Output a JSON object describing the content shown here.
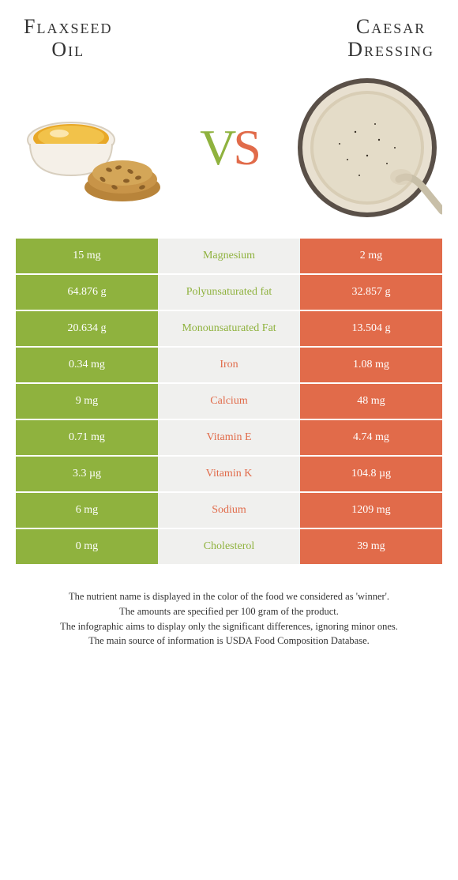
{
  "header": {
    "left_title_line1": "Flaxseed",
    "left_title_line2": "Oil",
    "right_title_line1": "Caesar",
    "right_title_line2": "Dressing"
  },
  "vs": {
    "v": "V",
    "s": "S"
  },
  "colors": {
    "green": "#8fb23e",
    "orange": "#e16b4a",
    "mid_bg": "#f0f0ee"
  },
  "rows": [
    {
      "left": "15 mg",
      "label": "Magnesium",
      "right": "2 mg",
      "winner": "green"
    },
    {
      "left": "64.876 g",
      "label": "Polyunsaturated fat",
      "right": "32.857 g",
      "winner": "green"
    },
    {
      "left": "20.634 g",
      "label": "Monounsaturated Fat",
      "right": "13.504 g",
      "winner": "green"
    },
    {
      "left": "0.34 mg",
      "label": "Iron",
      "right": "1.08 mg",
      "winner": "orange"
    },
    {
      "left": "9 mg",
      "label": "Calcium",
      "right": "48 mg",
      "winner": "orange"
    },
    {
      "left": "0.71 mg",
      "label": "Vitamin E",
      "right": "4.74 mg",
      "winner": "orange"
    },
    {
      "left": "3.3 µg",
      "label": "Vitamin K",
      "right": "104.8 µg",
      "winner": "orange"
    },
    {
      "left": "6 mg",
      "label": "Sodium",
      "right": "1209 mg",
      "winner": "orange"
    },
    {
      "left": "0 mg",
      "label": "Cholesterol",
      "right": "39 mg",
      "winner": "green"
    }
  ],
  "notes": {
    "line1": "The nutrient name is displayed in the color of the food we considered as 'winner'.",
    "line2": "The amounts are specified per 100 gram of the product.",
    "line3": "The infographic aims to display only the significant differences, ignoring minor ones.",
    "line4": "The main source of information is USDA Food Composition Database."
  }
}
